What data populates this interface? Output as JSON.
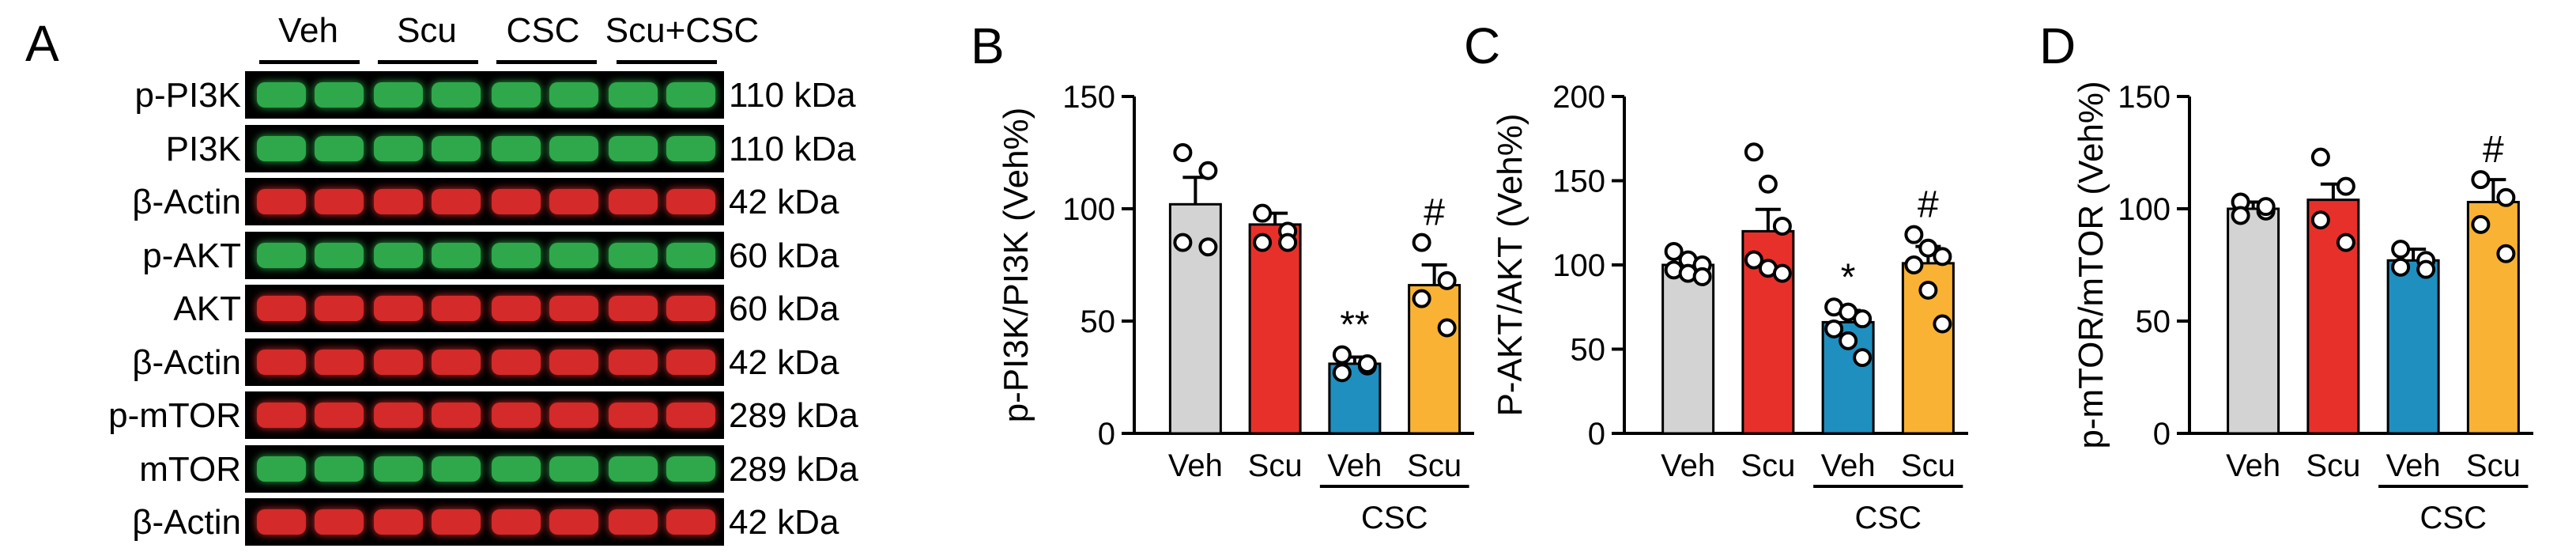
{
  "panel_a": {
    "letter": "A",
    "groups": [
      "Veh",
      "Scu",
      "CSC",
      "Scu+CSC"
    ],
    "rows": [
      {
        "protein": "p-PI3K",
        "size": "110 kDa",
        "channel": "green"
      },
      {
        "protein": "PI3K",
        "size": "110 kDa",
        "channel": "green"
      },
      {
        "protein": "β-Actin",
        "size": "42 kDa",
        "channel": "red"
      },
      {
        "protein": "p-AKT",
        "size": "60 kDa",
        "channel": "green"
      },
      {
        "protein": "AKT",
        "size": "60 kDa",
        "channel": "red"
      },
      {
        "protein": "β-Actin",
        "size": "42 kDa",
        "channel": "red"
      },
      {
        "protein": "p-mTOR",
        "size": "289 kDa",
        "channel": "red"
      },
      {
        "protein": "mTOR",
        "size": "289 kDa",
        "channel": "green"
      },
      {
        "protein": "β-Actin",
        "size": "42 kDa",
        "channel": "red"
      }
    ]
  },
  "colors": {
    "veh": "#d3d3d3",
    "scu": "#e8302a",
    "csc": "#1f8fbf",
    "scu_csc": "#f9b233",
    "blot_bg": "#000000",
    "green_band": "#2ea84a",
    "red_band": "#d42a2a"
  },
  "chart_data": [
    {
      "panel": "B",
      "type": "bar",
      "categories": [
        "Veh",
        "Scu",
        "Veh",
        "Scu"
      ],
      "group_label": "CSC",
      "ylabel": "p-PI3K/PI3K (Veh%)",
      "ylim": [
        0,
        150
      ],
      "yticks": [
        "0",
        "50",
        "100",
        "150"
      ],
      "values": [
        102,
        93,
        31,
        66
      ],
      "errors": [
        12,
        5,
        3,
        9
      ],
      "points": [
        [
          125,
          117,
          85,
          83
        ],
        [
          98,
          90,
          85,
          85
        ],
        [
          35,
          30,
          27,
          31
        ],
        [
          85,
          68,
          60,
          47
        ]
      ],
      "annotations": [
        "",
        "",
        "**",
        "#"
      ]
    },
    {
      "panel": "C",
      "type": "bar",
      "categories": [
        "Veh",
        "Scu",
        "Veh",
        "Scu"
      ],
      "group_label": "CSC",
      "ylabel": "P-AKT/AKT (Veh%)",
      "ylim": [
        0,
        200
      ],
      "yticks": [
        "0",
        "50",
        "100",
        "150",
        "200"
      ],
      "values": [
        100,
        120,
        66,
        101
      ],
      "errors": [
        4,
        13,
        7,
        10
      ],
      "points": [
        [
          108,
          103,
          100,
          97,
          95,
          93
        ],
        [
          167,
          148,
          123,
          103,
          98,
          95
        ],
        [
          75,
          72,
          68,
          62,
          55,
          45
        ],
        [
          118,
          110,
          105,
          100,
          85,
          65
        ]
      ],
      "annotations": [
        "",
        "",
        "*",
        "#"
      ]
    },
    {
      "panel": "D",
      "type": "bar",
      "categories": [
        "Veh",
        "Scu",
        "Veh",
        "Scu"
      ],
      "group_label": "CSC",
      "ylabel": "p-mTOR/mTOR (Veh%)",
      "ylim": [
        0,
        150
      ],
      "yticks": [
        "0",
        "50",
        "100",
        "150"
      ],
      "values": [
        100,
        104,
        77,
        103
      ],
      "errors": [
        3,
        7,
        5,
        10
      ],
      "points": [
        [
          103,
          99,
          97,
          101
        ],
        [
          123,
          110,
          95,
          85
        ],
        [
          82,
          77,
          74,
          73
        ],
        [
          113,
          105,
          93,
          80
        ]
      ],
      "annotations": [
        "",
        "",
        "",
        "#"
      ]
    }
  ]
}
